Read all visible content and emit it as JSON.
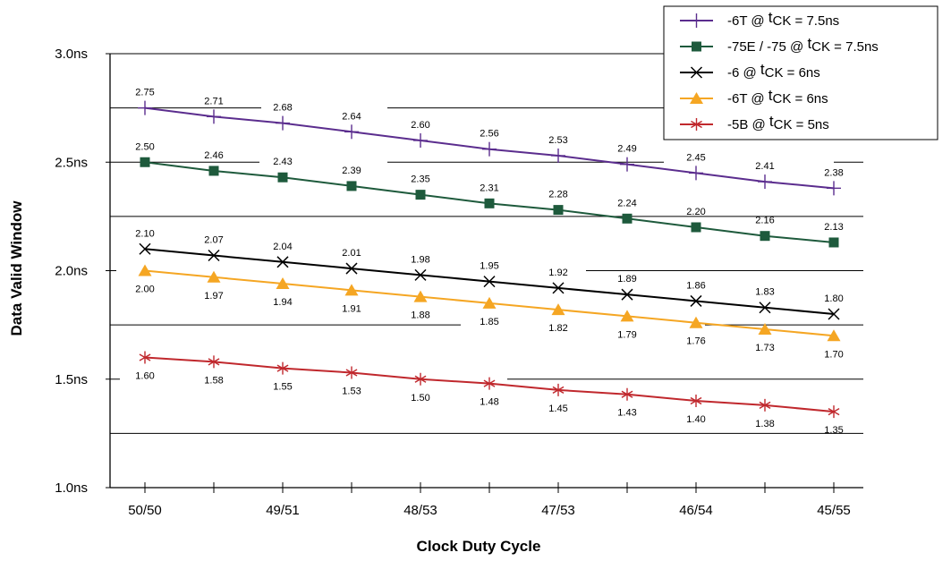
{
  "chart_data": {
    "type": "line",
    "categories": [
      "50/50",
      "",
      "49/51",
      "",
      "48/53",
      "",
      "47/53",
      "",
      "46/54",
      "",
      "45/55"
    ],
    "xlabel": "Clock Duty Cycle",
    "ylabel": "Data Valid Window",
    "ylim": [
      1.0,
      3.0
    ],
    "yticks": [
      {
        "value": 1.0,
        "label": "1.0ns"
      },
      {
        "value": 1.5,
        "label": "1.5ns"
      },
      {
        "value": 2.0,
        "label": "2.0ns"
      },
      {
        "value": 2.5,
        "label": "2.5ns"
      },
      {
        "value": 3.0,
        "label": "3.0ns"
      }
    ],
    "legend_position": "top-right",
    "series": [
      {
        "name_parts": {
          "pre": "-6T @ ",
          "sup": "t",
          "post": "CK = 7.5ns"
        },
        "color": "#5b2d8e",
        "marker": "plus",
        "values": [
          2.75,
          2.71,
          2.68,
          2.64,
          2.6,
          2.56,
          2.53,
          2.49,
          2.45,
          2.41,
          2.38
        ],
        "labels": [
          "2.75",
          "2.71",
          "2.68",
          "2.64",
          "2.60",
          "2.56",
          "2.53",
          "2.49",
          "2.45",
          "2.41",
          "2.38"
        ],
        "label_side": "above"
      },
      {
        "name_parts": {
          "pre": "-75E / -75 @ ",
          "sup": "t",
          "post": "CK = 7.5ns"
        },
        "color": "#1e5a3c",
        "marker": "square",
        "values": [
          2.5,
          2.46,
          2.43,
          2.39,
          2.35,
          2.31,
          2.28,
          2.24,
          2.2,
          2.16,
          2.13
        ],
        "labels": [
          "2.50",
          "2.46",
          "2.43",
          "2.39",
          "2.35",
          "2.31",
          "2.28",
          "2.24",
          "2.20",
          "2.16",
          "2.13"
        ],
        "label_side": "above"
      },
      {
        "name_parts": {
          "pre": "-6 @ ",
          "sup": "t",
          "post": "CK = 6ns"
        },
        "color": "#000000",
        "marker": "x",
        "values": [
          2.1,
          2.07,
          2.04,
          2.01,
          1.98,
          1.95,
          1.92,
          1.89,
          1.86,
          1.83,
          1.8
        ],
        "labels": [
          "2.10",
          "2.07",
          "2.04",
          "2.01",
          "1.98",
          "1.95",
          "1.92",
          "1.89",
          "1.86",
          "1.83",
          "1.80"
        ],
        "label_side": "above"
      },
      {
        "name_parts": {
          "pre": "-6T @ ",
          "sup": "t",
          "post": "CK = 6ns"
        },
        "color": "#f5a623",
        "marker": "triangle",
        "values": [
          2.0,
          1.97,
          1.94,
          1.91,
          1.88,
          1.85,
          1.82,
          1.79,
          1.76,
          1.73,
          1.7
        ],
        "labels": [
          "2.00",
          "1.97",
          "1.94",
          "1.91",
          "1.88",
          "1.85",
          "1.82",
          "1.79",
          "1.76",
          "1.73",
          "1.70"
        ],
        "label_side": "below"
      },
      {
        "name_parts": {
          "pre": "-5B @ ",
          "sup": "t",
          "post": "CK = 5ns"
        },
        "color": "#c0282d",
        "marker": "asterisk",
        "values": [
          1.6,
          1.58,
          1.55,
          1.53,
          1.5,
          1.48,
          1.45,
          1.43,
          1.4,
          1.38,
          1.35
        ],
        "labels": [
          "1.60",
          "1.58",
          "1.55",
          "1.53",
          "1.50",
          "1.48",
          "1.45",
          "1.43",
          "1.40",
          "1.38",
          "1.35"
        ],
        "label_side": "below"
      }
    ]
  }
}
